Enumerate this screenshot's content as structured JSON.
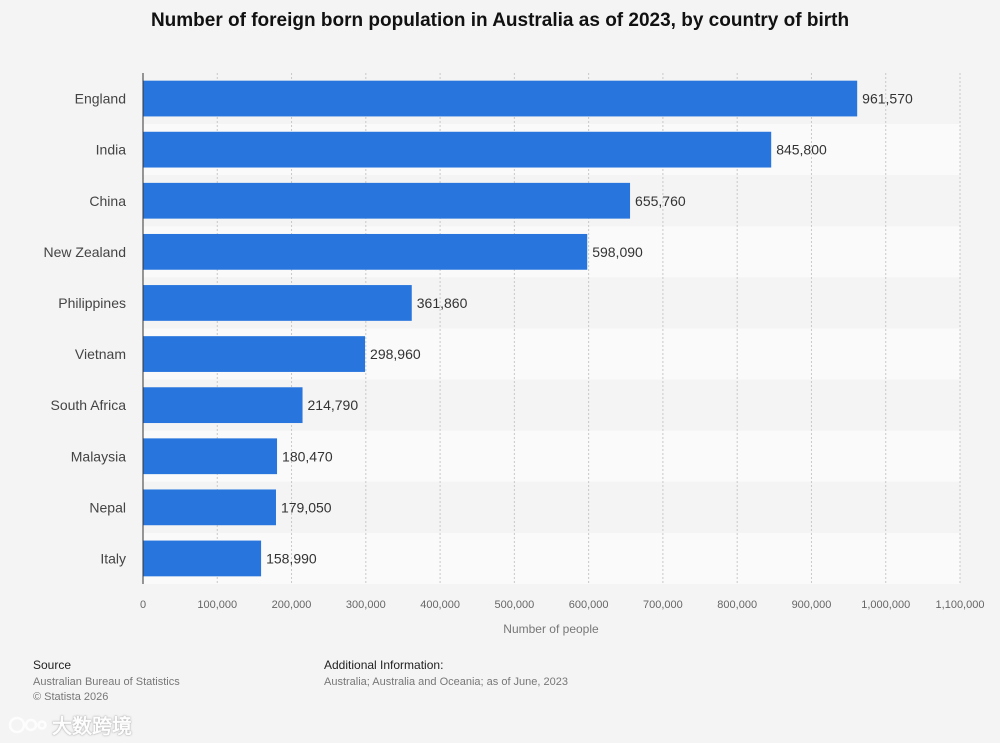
{
  "chart_data": {
    "type": "bar",
    "orientation": "horizontal",
    "title": "Number of foreign born population in Australia as of 2023, by country of birth",
    "categories": [
      "England",
      "India",
      "China",
      "New Zealand",
      "Philippines",
      "Vietnam",
      "South Africa",
      "Malaysia",
      "Nepal",
      "Italy"
    ],
    "values": [
      961570,
      845800,
      655760,
      598090,
      361860,
      298960,
      214790,
      180470,
      179050,
      158990
    ],
    "value_labels": [
      "961,570",
      "845,800",
      "655,760",
      "598,090",
      "361,860",
      "298,960",
      "214,790",
      "180,470",
      "179,050",
      "158,990"
    ],
    "xlabel": "Number of people",
    "ylabel": "",
    "xlim": [
      0,
      1100000
    ],
    "xticks": [
      0,
      100000,
      200000,
      300000,
      400000,
      500000,
      600000,
      700000,
      800000,
      900000,
      1000000,
      1100000
    ],
    "xtick_labels": [
      "0",
      "100,000",
      "200,000",
      "300,000",
      "400,000",
      "500,000",
      "600,000",
      "700,000",
      "800,000",
      "900,000",
      "1,000,000",
      "1,100,000"
    ],
    "grid": true,
    "bar_color": "#2876dd"
  },
  "footer": {
    "source_heading": "Source",
    "source_lines": [
      "Australian Bureau of Statistics",
      "© Statista 2026"
    ],
    "additional_heading": "Additional Information:",
    "additional_lines": [
      "Australia; Australia and Oceania; as of June, 2023"
    ]
  },
  "watermark": {
    "text": "大数跨境",
    "icon": "watermark-logo-icon"
  }
}
